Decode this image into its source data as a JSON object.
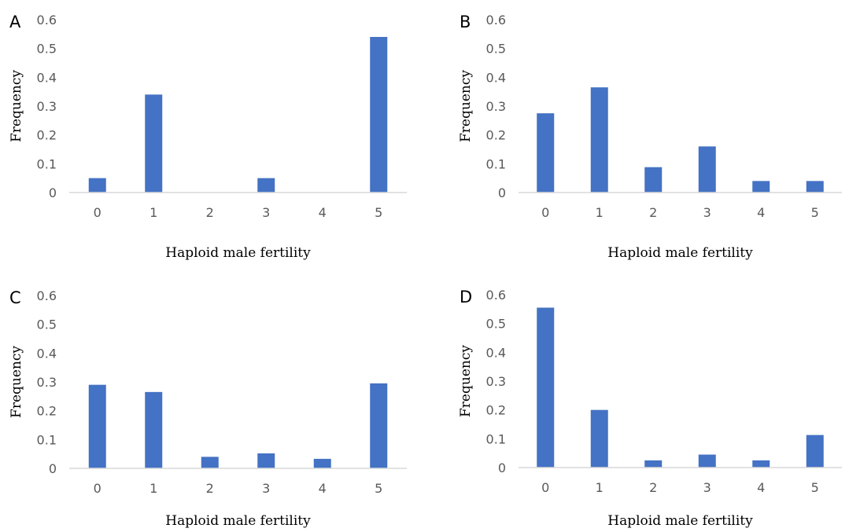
{
  "figure": {
    "bar_color": "#4472C4",
    "axis_color": "#D9D9D9",
    "tick_color": "#595959"
  },
  "chart_data": [
    {
      "panel": "A",
      "type": "bar",
      "categories": [
        "0",
        "1",
        "2",
        "3",
        "4",
        "5"
      ],
      "values": [
        0.05,
        0.34,
        0.0,
        0.05,
        0.0,
        0.54
      ],
      "xlabel": "Haploid male fertility",
      "ylabel": "Frequency",
      "ylim": [
        0,
        0.6
      ],
      "yticks": [
        "0",
        "0.1",
        "0.2",
        "0.3",
        "0.4",
        "0.5",
        "0.6"
      ],
      "grid": false
    },
    {
      "panel": "B",
      "type": "bar",
      "categories": [
        "0",
        "1",
        "2",
        "3",
        "4",
        "5"
      ],
      "values": [
        0.275,
        0.365,
        0.088,
        0.16,
        0.04,
        0.04
      ],
      "xlabel": "Haploid male fertility",
      "ylabel": "Frequency",
      "ylim": [
        0,
        0.6
      ],
      "yticks": [
        "0",
        "0.1",
        "0.2",
        "0.3",
        "0.4",
        "0.5",
        "0.6"
      ],
      "grid": false
    },
    {
      "panel": "C",
      "type": "bar",
      "categories": [
        "0",
        "1",
        "2",
        "3",
        "4",
        "5"
      ],
      "values": [
        0.29,
        0.265,
        0.04,
        0.052,
        0.033,
        0.295
      ],
      "xlabel": "Haploid male fertility",
      "ylabel": "Frequency",
      "ylim": [
        0,
        0.6
      ],
      "yticks": [
        "0",
        "0.1",
        "0.2",
        "0.3",
        "0.4",
        "0.5",
        "0.6"
      ],
      "grid": false
    },
    {
      "panel": "D",
      "type": "bar",
      "categories": [
        "0",
        "1",
        "2",
        "3",
        "4",
        "5"
      ],
      "values": [
        0.555,
        0.2,
        0.025,
        0.045,
        0.025,
        0.113
      ],
      "xlabel": "Haploid male fertility",
      "ylabel": "Frequency",
      "ylim": [
        0,
        0.6
      ],
      "yticks": [
        "0",
        "0.1",
        "0.2",
        "0.3",
        "0.4",
        "0.5",
        "0.6"
      ],
      "grid": false
    }
  ]
}
